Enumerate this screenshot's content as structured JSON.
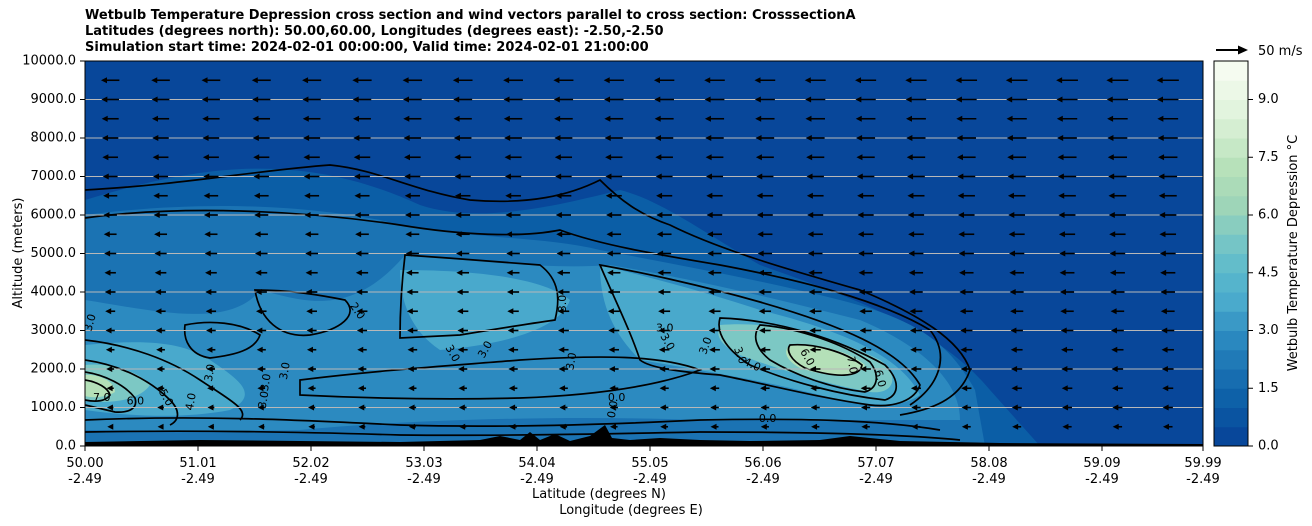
{
  "chart_data": {
    "type": "contour",
    "title_lines": [
      "Wetbulb Temperature Depression cross section and wind vectors parallel to cross section: CrosssectionA",
      "Latitudes (degrees north): 50.00,60.00, Longitudes (degrees east): -2.50,-2.50",
      "Simulation start time: 2024-02-01 00:00:00, Valid time: 2024-02-01 21:00:00"
    ],
    "ylabel": "Altitude (meters)",
    "xlabel_lines": [
      "Latitude (degrees N)",
      "Longitude (degrees E)"
    ],
    "y_ticks": [
      "0.0",
      "1000.0",
      "2000.0",
      "3000.0",
      "4000.0",
      "5000.0",
      "6000.0",
      "7000.0",
      "8000.0",
      "9000.0",
      "10000.0"
    ],
    "ylim": [
      0,
      10000
    ],
    "x_ticks_lat": [
      "50.00",
      "51.01",
      "52.02",
      "53.03",
      "54.04",
      "55.05",
      "56.06",
      "57.07",
      "58.08",
      "59.09",
      "59.99"
    ],
    "x_ticks_lon": [
      "-2.49",
      "-2.49",
      "-2.49",
      "-2.49",
      "-2.49",
      "-2.49",
      "-2.49",
      "-2.49",
      "-2.49",
      "-2.49",
      "-2.49"
    ],
    "xlim": [
      50.0,
      59.99
    ],
    "colorbar": {
      "label": "Wetbulb Temperature Depression °C",
      "ticks": [
        "0.0",
        "1.5",
        "3.0",
        "4.5",
        "6.0",
        "7.5",
        "9.0"
      ],
      "range": [
        0,
        10
      ]
    },
    "quiver_key_label": "50 m/s",
    "contour_labels": [
      {
        "text": "3.0",
        "lat": 50.05,
        "alt": 3200,
        "rot": -75
      },
      {
        "text": "7.0",
        "lat": 50.15,
        "alt": 1250,
        "rot": 0
      },
      {
        "text": "6.0",
        "lat": 50.45,
        "alt": 1150,
        "rot": 0
      },
      {
        "text": "5.0",
        "lat": 50.72,
        "alt": 1250,
        "rot": 60
      },
      {
        "text": "4.0",
        "lat": 50.95,
        "alt": 1150,
        "rot": -80
      },
      {
        "text": "3.0",
        "lat": 51.12,
        "alt": 1900,
        "rot": -80
      },
      {
        "text": "3.0",
        "lat": 51.62,
        "alt": 1650,
        "rot": -80
      },
      {
        "text": "3.0",
        "lat": 51.6,
        "alt": 1200,
        "rot": -80
      },
      {
        "text": "3.0",
        "lat": 51.79,
        "alt": 1950,
        "rot": -80
      },
      {
        "text": "2.0",
        "lat": 52.43,
        "alt": 3500,
        "rot": 55
      },
      {
        "text": "3.0",
        "lat": 53.28,
        "alt": 2400,
        "rot": 60
      },
      {
        "text": "3.0",
        "lat": 53.58,
        "alt": 2500,
        "rot": -60
      },
      {
        "text": "3.0",
        "lat": 54.27,
        "alt": 3700,
        "rot": -90
      },
      {
        "text": "3.0",
        "lat": 54.35,
        "alt": 2200,
        "rot": -80
      },
      {
        "text": "3.0",
        "lat": 55.18,
        "alt": 3050,
        "rot": 0
      },
      {
        "text": "3.0",
        "lat": 55.2,
        "alt": 2700,
        "rot": 60
      },
      {
        "text": "3.0",
        "lat": 55.55,
        "alt": 2600,
        "rot": -70
      },
      {
        "text": "3.0",
        "lat": 55.85,
        "alt": 2350,
        "rot": 70
      },
      {
        "text": "4.0",
        "lat": 55.96,
        "alt": 2100,
        "rot": 25
      },
      {
        "text": "6.0",
        "lat": 56.45,
        "alt": 2300,
        "rot": 60
      },
      {
        "text": "7.0",
        "lat": 56.85,
        "alt": 2100,
        "rot": 80
      },
      {
        "text": "6.0",
        "lat": 57.1,
        "alt": 1750,
        "rot": 75
      },
      {
        "text": "0.0",
        "lat": 54.75,
        "alt": 1250,
        "rot": 0
      },
      {
        "text": "0.0",
        "lat": 54.72,
        "alt": 950,
        "rot": -80
      },
      {
        "text": "0.0",
        "lat": 56.1,
        "alt": 700,
        "rot": 0
      }
    ]
  }
}
